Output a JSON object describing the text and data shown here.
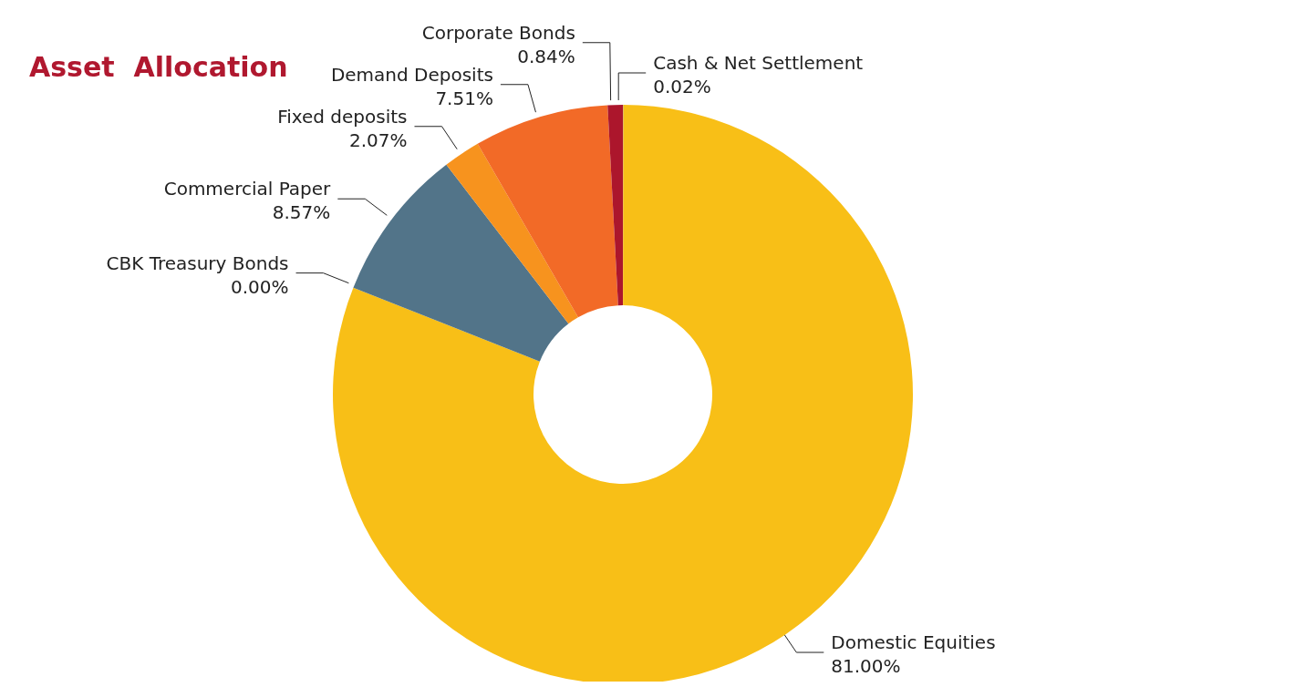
{
  "chart_data": {
    "type": "donut",
    "title": "Asset  Allocation",
    "categories": [
      "Cash & Net Settlement",
      "Domestic Equities",
      "CBK Treasury Bonds",
      "Commercial Paper",
      "Fixed deposits",
      "Demand Deposits",
      "Corporate Bonds"
    ],
    "values": [
      0.02,
      81.0,
      0.0,
      8.57,
      2.07,
      7.51,
      0.84
    ],
    "value_labels": [
      "0.02%",
      "81.00%",
      "0.00%",
      "8.57%",
      "2.07%",
      "7.51%",
      "0.84%"
    ],
    "colors": [
      "#5b4fa8",
      "#f8bf17",
      "#f8bf17",
      "#527489",
      "#f7931e",
      "#f26a27",
      "#ac162c"
    ]
  }
}
